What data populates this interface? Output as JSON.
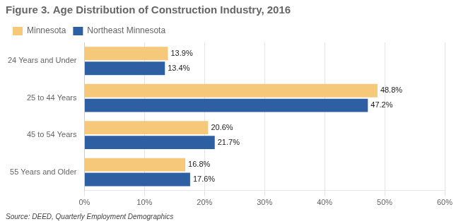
{
  "chart_data": {
    "type": "bar",
    "orientation": "horizontal",
    "title": "Figure 3. Age Distribution of Construction Industry, 2016",
    "annotations": [
      "Source: DEED, Quarterly Employment Demographics"
    ],
    "categories": [
      "24 Years and Under",
      "25 to 44 Years",
      "45 to 54 Years",
      "55 Years and Older"
    ],
    "series": [
      {
        "name": "Minnesota",
        "color": "#F5C87A",
        "values": [
          13.9,
          48.8,
          20.6,
          16.8
        ],
        "value_labels": [
          "13.9%",
          "48.8%",
          "20.6%",
          "16.8%"
        ]
      },
      {
        "name": "Northeast Minnesota",
        "color": "#2E5FA3",
        "values": [
          13.4,
          47.2,
          21.7,
          17.6
        ],
        "value_labels": [
          "13.4%",
          "47.2%",
          "21.7%",
          "17.6%"
        ]
      }
    ],
    "xlim": [
      0,
      60
    ],
    "xticks": [
      {
        "value": 0,
        "label": "0%"
      },
      {
        "value": 10,
        "label": "10%"
      },
      {
        "value": 20,
        "label": "20%"
      },
      {
        "value": 30,
        "label": "30%"
      },
      {
        "value": 40,
        "label": "40%"
      },
      {
        "value": 50,
        "label": "50%"
      },
      {
        "value": 60,
        "label": "60%"
      }
    ],
    "grid": true,
    "legend": "top",
    "data_labels": true
  }
}
